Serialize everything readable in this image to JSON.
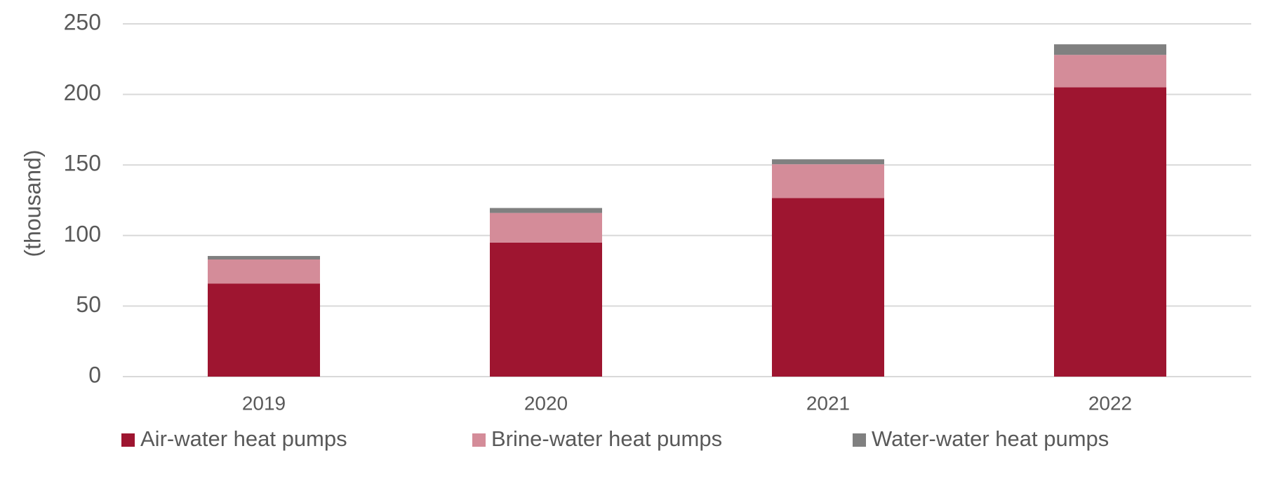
{
  "chart_data": {
    "type": "stacked_bar",
    "y_label": "(thousand)",
    "categories": [
      "2019",
      "2020",
      "2021",
      "2022"
    ],
    "series": [
      {
        "name": "Air-water heat pumps",
        "color": "#9e1530",
        "values": [
          66,
          95,
          126.5,
          205
        ]
      },
      {
        "name": "Brine-water heat pumps",
        "color": "#d48c99",
        "values": [
          17,
          21,
          24,
          23
        ]
      },
      {
        "name": "Water-water heat pumps",
        "color": "#808080",
        "values": [
          2.5,
          3.5,
          3.5,
          7.5
        ]
      }
    ],
    "ylim": [
      0,
      250
    ],
    "yticks": [
      0,
      50,
      100,
      150,
      200,
      250
    ],
    "grid": true,
    "legend": "bottom"
  }
}
